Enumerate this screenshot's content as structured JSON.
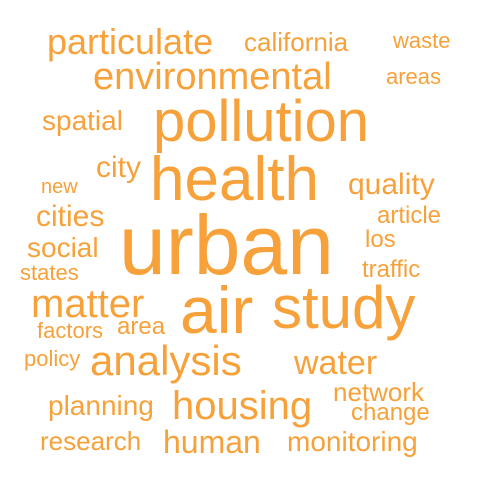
{
  "theme": {
    "word_color": "#f7a13a",
    "background": "#ffffff"
  },
  "words": {
    "particulate": "particulate",
    "california": "california",
    "waste": "waste",
    "environmental": "environmental",
    "areas": "areas",
    "pollution": "pollution",
    "spatial": "spatial",
    "city": "city",
    "health": "health",
    "new": "new",
    "quality": "quality",
    "cities": "cities",
    "article": "article",
    "urban": "urban",
    "los": "los",
    "social": "social",
    "states": "states",
    "traffic": "traffic",
    "matter": "matter",
    "air": "air",
    "study": "study",
    "factors": "factors",
    "area": "area",
    "policy": "policy",
    "analysis": "analysis",
    "water": "water",
    "network": "network",
    "planning": "planning",
    "housing": "housing",
    "change": "change",
    "research": "research",
    "human": "human",
    "monitoring": "monitoring"
  }
}
